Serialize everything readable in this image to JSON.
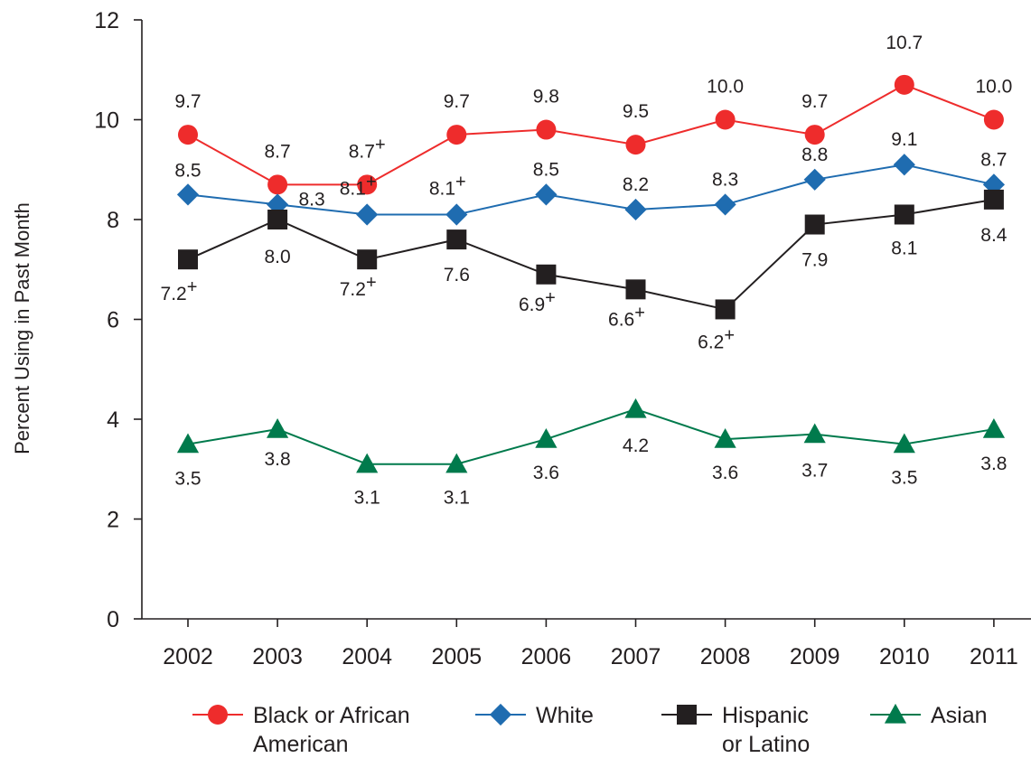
{
  "chart_data": {
    "type": "line",
    "title": "",
    "xlabel": "",
    "ylabel": "Percent Using in Past Month",
    "ylim": [
      0,
      12
    ],
    "yticks": [
      "0",
      "2",
      "4",
      "6",
      "8",
      "10",
      "12"
    ],
    "categories": [
      "2002",
      "2003",
      "2004",
      "2005",
      "2006",
      "2007",
      "2008",
      "2009",
      "2010",
      "2011"
    ],
    "grid": false,
    "legend_position": "bottom",
    "series": [
      {
        "name": "Black or African American",
        "legend_lines": [
          "Black or African",
          "American"
        ],
        "color": "#ee2c2c",
        "marker": "circle",
        "values": [
          9.7,
          8.7,
          8.7,
          9.7,
          9.8,
          9.5,
          10.0,
          9.7,
          10.7,
          10.0
        ],
        "labels": [
          "9.7",
          "8.7",
          "8.7",
          "9.7",
          "9.8",
          "9.5",
          "10.0",
          "9.7",
          "10.7",
          "10.0"
        ],
        "flags": [
          "",
          "",
          "+",
          "",
          "",
          "",
          "",
          "",
          "",
          ""
        ]
      },
      {
        "name": "White",
        "legend_lines": [
          "White"
        ],
        "color": "#1f6cb0",
        "marker": "diamond",
        "values": [
          8.5,
          8.3,
          8.1,
          8.1,
          8.5,
          8.2,
          8.3,
          8.8,
          9.1,
          8.7
        ],
        "labels": [
          "8.5",
          "8.3",
          "8.1",
          "8.1",
          "8.5",
          "8.2",
          "8.3",
          "8.8",
          "9.1",
          "8.7"
        ],
        "flags": [
          "",
          "",
          "+",
          "+",
          "",
          "",
          "",
          "",
          "",
          ""
        ]
      },
      {
        "name": "Hispanic or Latino",
        "legend_lines": [
          "Hispanic",
          "or Latino"
        ],
        "color": "#231f20",
        "marker": "square",
        "values": [
          7.2,
          8.0,
          7.2,
          7.6,
          6.9,
          6.6,
          6.2,
          7.9,
          8.1,
          8.4
        ],
        "labels": [
          "7.2",
          "8.0",
          "7.2",
          "7.6",
          "6.9",
          "6.6",
          "6.2",
          "7.9",
          "8.1",
          "8.4"
        ],
        "flags": [
          "+",
          "",
          "+",
          "",
          "+",
          "+",
          "+",
          "",
          "",
          ""
        ]
      },
      {
        "name": "Asian",
        "legend_lines": [
          "Asian"
        ],
        "color": "#007a4c",
        "marker": "triangle",
        "values": [
          3.5,
          3.8,
          3.1,
          3.1,
          3.6,
          4.2,
          3.6,
          3.7,
          3.5,
          3.8
        ],
        "labels": [
          "3.5",
          "3.8",
          "3.1",
          "3.1",
          "3.6",
          "4.2",
          "3.6",
          "3.7",
          "3.5",
          "3.8"
        ],
        "flags": [
          "",
          "",
          "",
          "",
          "",
          "",
          "",
          "",
          "",
          ""
        ]
      }
    ]
  }
}
